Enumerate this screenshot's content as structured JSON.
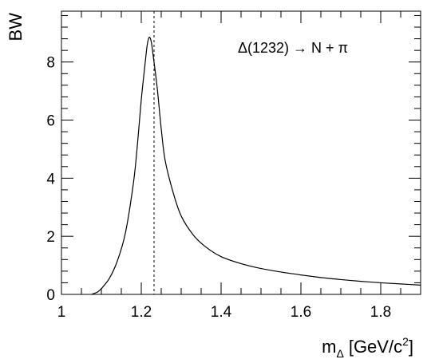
{
  "chart_data": {
    "type": "line",
    "title": "",
    "xlabel_main": "m",
    "xlabel_sub": "Δ",
    "xlabel_unit_pre": "[GeV/c",
    "xlabel_unit_sup": "2",
    "xlabel_unit_post": "]",
    "ylabel": "BW",
    "annotation": "Δ(1232) → N + π",
    "xlim": [
      1.0,
      1.9
    ],
    "ylim": [
      0,
      9.75
    ],
    "x_ticks": [
      1,
      1.2,
      1.4,
      1.6,
      1.8
    ],
    "x_tick_labels": [
      "1",
      "1.2",
      "1.4",
      "1.6",
      "1.8"
    ],
    "y_ticks": [
      0,
      2,
      4,
      6,
      8
    ],
    "y_tick_labels": [
      "0",
      "2",
      "4",
      "6",
      "8"
    ],
    "x_minor_step": 0.05,
    "y_minor_step": 0.4,
    "reference_line_x": 1.232,
    "grid": false,
    "legend": "none",
    "line_color": "#000000",
    "series": [
      {
        "x": [
          1.075,
          1.09,
          1.1,
          1.12,
          1.14,
          1.16,
          1.18,
          1.19,
          1.2,
          1.21,
          1.215,
          1.22,
          1.225,
          1.23,
          1.24,
          1.25,
          1.26,
          1.28,
          1.3,
          1.33,
          1.36,
          1.4,
          1.45,
          1.5,
          1.55,
          1.6,
          1.65,
          1.7,
          1.75,
          1.8,
          1.85,
          1.9
        ],
        "values": [
          0.0,
          0.08,
          0.2,
          0.55,
          1.15,
          2.1,
          3.8,
          5.1,
          6.7,
          8.0,
          8.6,
          8.85,
          8.7,
          8.2,
          7.1,
          5.7,
          4.6,
          3.5,
          2.7,
          2.05,
          1.65,
          1.3,
          1.06,
          0.89,
          0.77,
          0.67,
          0.58,
          0.51,
          0.45,
          0.4,
          0.36,
          0.32
        ]
      }
    ]
  }
}
